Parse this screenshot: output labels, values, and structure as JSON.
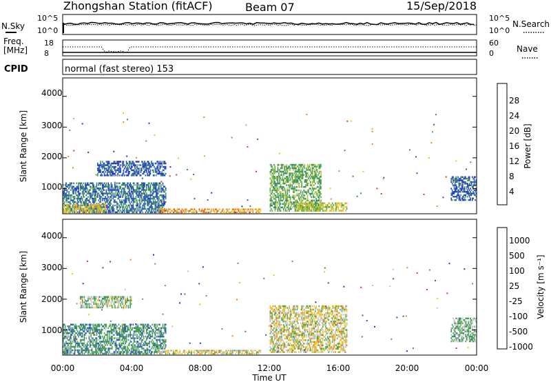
{
  "header": {
    "station": "Zhongshan Station (fitACF)",
    "beam": "Beam 07",
    "date": "15/Sep/2018"
  },
  "noise_panel": {
    "left_label": "N.Sky",
    "right_label": "N.Search",
    "left_ticks": [
      "10^5",
      "10^0"
    ],
    "right_ticks": [
      "10^5",
      "10^0"
    ]
  },
  "freq_panel": {
    "left_label_line1": "Freq.",
    "left_label_line2": "[MHz]",
    "right_label": "Nave",
    "left_ticks": [
      "18",
      "8"
    ],
    "right_ticks": [
      "60",
      "0"
    ]
  },
  "cpid": {
    "label": "CPID",
    "value": "normal (fast stereo) 153"
  },
  "power_panel": {
    "ylabel": "Slant Range [km]",
    "yticks": [
      "4000",
      "3000",
      "2000",
      "1000"
    ],
    "colorbar_label": "Power [dB]",
    "colorbar_ticks": [
      "28",
      "24",
      "20",
      "16",
      "12",
      "8",
      "4"
    ]
  },
  "velocity_panel": {
    "ylabel": "Slant Range [km]",
    "yticks": [
      "4000",
      "3000",
      "2000",
      "1000"
    ],
    "colorbar_label": "Velocity [m s⁻¹]",
    "colorbar_ticks": [
      "1000",
      "500",
      "100",
      "25",
      "-25",
      "-100",
      "-500",
      "-1000"
    ]
  },
  "xaxis": {
    "label": "Time UT",
    "ticks": [
      "00:00",
      "04:00",
      "08:00",
      "12:00",
      "16:00",
      "20:00",
      "00:00"
    ]
  },
  "colors": {
    "power_scale": [
      "#2030c8",
      "#2a55c0",
      "#3a8a6a",
      "#4aa84a",
      "#b0c040",
      "#f0c020",
      "#f08020",
      "#e03020"
    ],
    "velocity_scale": [
      "#2030c8",
      "#2a55c0",
      "#3a8a6a",
      "#4aa84a",
      "#c0c0c0",
      "#f0c020",
      "#f08020",
      "#e03020"
    ]
  },
  "chart_data": [
    {
      "type": "heatmap",
      "title": "Zhongshan Station (fitACF) Beam 07 15/Sep/2018",
      "xlabel": "Time UT",
      "ylabel": "Slant Range [km]",
      "xlim": [
        "00:00",
        "24:00"
      ],
      "ylim": [
        180,
        4600
      ],
      "colorbar": "Power [dB]",
      "colorbar_range": [
        0,
        32
      ],
      "regions": [
        {
          "t": [
            0.0,
            6.0
          ],
          "range": [
            200,
            1200
          ],
          "value": 8
        },
        {
          "t": [
            0.0,
            2.5
          ],
          "range": [
            200,
            500
          ],
          "value": 20
        },
        {
          "t": [
            2.0,
            6.0
          ],
          "range": [
            1400,
            1900
          ],
          "value": 6
        },
        {
          "t": [
            5.5,
            11.5
          ],
          "range": [
            200,
            350
          ],
          "value": 24
        },
        {
          "t": [
            12.0,
            15.0
          ],
          "range": [
            250,
            1800
          ],
          "value": 14
        },
        {
          "t": [
            13.5,
            16.5
          ],
          "range": [
            250,
            550
          ],
          "value": 18
        },
        {
          "t": [
            22.5,
            24.0
          ],
          "range": [
            600,
            1400
          ],
          "value": 6
        }
      ]
    },
    {
      "type": "heatmap",
      "title": "Zhongshan Station (fitACF) Beam 07 15/Sep/2018",
      "xlabel": "Time UT",
      "ylabel": "Slant Range [km]",
      "xlim": [
        "00:00",
        "24:00"
      ],
      "ylim": [
        180,
        4600
      ],
      "colorbar": "Velocity [m s⁻¹]",
      "colorbar_range": [
        -1000,
        1000
      ],
      "regions": [
        {
          "t": [
            0.0,
            6.0
          ],
          "range": [
            200,
            1200
          ],
          "value": 300
        },
        {
          "t": [
            1.0,
            4.0
          ],
          "range": [
            1700,
            2100
          ],
          "value": 0
        },
        {
          "t": [
            5.5,
            11.5
          ],
          "range": [
            200,
            350
          ],
          "value": -200
        },
        {
          "t": [
            12.0,
            16.5
          ],
          "range": [
            250,
            1800
          ],
          "value": -200
        },
        {
          "t": [
            22.5,
            24.0
          ],
          "range": [
            600,
            1400
          ],
          "value": 100
        }
      ]
    }
  ]
}
